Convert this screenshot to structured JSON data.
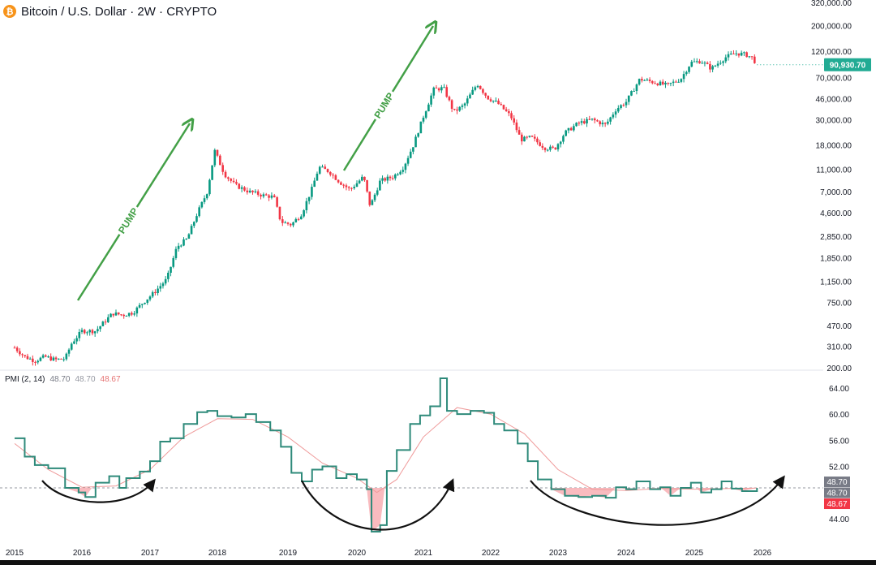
{
  "header": {
    "coin_icon": "bitcoin-icon",
    "coin_glyph": "₿",
    "title": "Bitcoin / U.S. Dollar · 2W · CRYPTO"
  },
  "price_badge": "90,930.70",
  "pmi_legend": {
    "name": "PMI (2, 14)",
    "v1": "48.70",
    "v2": "48.70",
    "v3": "48.67"
  },
  "pmi_badges": [
    "48.70",
    "48.70",
    "48.67"
  ],
  "annotations": [
    "PUMP",
    "PUMP"
  ],
  "colors": {
    "up": "#089981",
    "down": "#f23645",
    "pmi_line": "#2e8a7a",
    "pmi_gray": "#808080",
    "signal": "#ef9a9a",
    "fill": "#f8b4b8",
    "arrow": "#43a047",
    "badge_green": "#22ab94",
    "badge_red": "#f23645"
  },
  "chart_data": [
    {
      "type": "candlestick",
      "title": "Bitcoin / U.S. Dollar · 2W · CRYPTO",
      "scale": "log",
      "ylim": [
        200,
        320000
      ],
      "y_ticks": [
        "320,000.00",
        "200,000.00",
        "120,000.00",
        "70,000.00",
        "46,000.00",
        "30,000.00",
        "18,000.00",
        "11,000.00",
        "7,000.00",
        "4,600.00",
        "2,850.00",
        "1,850.00",
        "1,150.00",
        "750.00",
        "470.00",
        "310.00",
        "200.00"
      ],
      "x_ticks": [
        "2015",
        "2016",
        "2017",
        "2018",
        "2019",
        "2020",
        "2021",
        "2022",
        "2023",
        "2024",
        "2025",
        "2026"
      ],
      "xlim": [
        2015.0,
        2026.4
      ],
      "last_price": 90930.7,
      "series": [
        {
          "t": 2015.0,
          "p": 300
        },
        {
          "t": 2015.15,
          "p": 250
        },
        {
          "t": 2015.3,
          "p": 230
        },
        {
          "t": 2015.45,
          "p": 250
        },
        {
          "t": 2015.6,
          "p": 235
        },
        {
          "t": 2015.75,
          "p": 240
        },
        {
          "t": 2015.85,
          "p": 330
        },
        {
          "t": 2016.0,
          "p": 420
        },
        {
          "t": 2016.2,
          "p": 420
        },
        {
          "t": 2016.45,
          "p": 600
        },
        {
          "t": 2016.6,
          "p": 580
        },
        {
          "t": 2016.75,
          "p": 610
        },
        {
          "t": 2016.9,
          "p": 750
        },
        {
          "t": 2017.05,
          "p": 900
        },
        {
          "t": 2017.25,
          "p": 1200
        },
        {
          "t": 2017.4,
          "p": 2300
        },
        {
          "t": 2017.55,
          "p": 2700
        },
        {
          "t": 2017.7,
          "p": 4500
        },
        {
          "t": 2017.85,
          "p": 7000
        },
        {
          "t": 2017.96,
          "p": 16000
        },
        {
          "t": 2018.1,
          "p": 10000
        },
        {
          "t": 2018.25,
          "p": 8000
        },
        {
          "t": 2018.45,
          "p": 7000
        },
        {
          "t": 2018.65,
          "p": 6500
        },
        {
          "t": 2018.8,
          "p": 6300
        },
        {
          "t": 2018.9,
          "p": 3800
        },
        {
          "t": 2019.05,
          "p": 3600
        },
        {
          "t": 2019.2,
          "p": 4500
        },
        {
          "t": 2019.35,
          "p": 7500
        },
        {
          "t": 2019.45,
          "p": 11500
        },
        {
          "t": 2019.6,
          "p": 10500
        },
        {
          "t": 2019.75,
          "p": 8500
        },
        {
          "t": 2019.9,
          "p": 7300
        },
        {
          "t": 2020.1,
          "p": 9500
        },
        {
          "t": 2020.2,
          "p": 5200
        },
        {
          "t": 2020.35,
          "p": 8700
        },
        {
          "t": 2020.55,
          "p": 9500
        },
        {
          "t": 2020.7,
          "p": 11500
        },
        {
          "t": 2020.85,
          "p": 18000
        },
        {
          "t": 2021.0,
          "p": 32000
        },
        {
          "t": 2021.15,
          "p": 55000
        },
        {
          "t": 2021.3,
          "p": 57000
        },
        {
          "t": 2021.45,
          "p": 35000
        },
        {
          "t": 2021.6,
          "p": 40000
        },
        {
          "t": 2021.8,
          "p": 62000
        },
        {
          "t": 2021.95,
          "p": 47000
        },
        {
          "t": 2022.1,
          "p": 42000
        },
        {
          "t": 2022.3,
          "p": 32000
        },
        {
          "t": 2022.45,
          "p": 20000
        },
        {
          "t": 2022.6,
          "p": 21000
        },
        {
          "t": 2022.8,
          "p": 17000
        },
        {
          "t": 2022.95,
          "p": 16600
        },
        {
          "t": 2023.1,
          "p": 23000
        },
        {
          "t": 2023.3,
          "p": 28000
        },
        {
          "t": 2023.5,
          "p": 30000
        },
        {
          "t": 2023.7,
          "p": 27000
        },
        {
          "t": 2023.85,
          "p": 37000
        },
        {
          "t": 2024.0,
          "p": 43000
        },
        {
          "t": 2024.2,
          "p": 68000
        },
        {
          "t": 2024.4,
          "p": 64000
        },
        {
          "t": 2024.6,
          "p": 60000
        },
        {
          "t": 2024.8,
          "p": 68000
        },
        {
          "t": 2024.95,
          "p": 95000
        },
        {
          "t": 2025.1,
          "p": 98000
        },
        {
          "t": 2025.25,
          "p": 84000
        },
        {
          "t": 2025.45,
          "p": 105000
        },
        {
          "t": 2025.6,
          "p": 115000
        },
        {
          "t": 2025.75,
          "p": 112000
        },
        {
          "t": 2025.85,
          "p": 105000
        },
        {
          "t": 2025.92,
          "p": 90930
        }
      ]
    },
    {
      "type": "line",
      "title": "PMI (2, 14)",
      "ylim": [
        41,
        66
      ],
      "y_ticks": [
        "64.00",
        "60.00",
        "56.00",
        "52.00",
        "44.00"
      ],
      "reference_line": 48.7,
      "series": [
        {
          "name": "PMI",
          "values": [
            {
              "t": 2015.0,
              "v": 56.3
            },
            {
              "t": 2015.15,
              "v": 53.5
            },
            {
              "t": 2015.3,
              "v": 52.2
            },
            {
              "t": 2015.5,
              "v": 51.7
            },
            {
              "t": 2015.75,
              "v": 48.7
            },
            {
              "t": 2015.95,
              "v": 48.0
            },
            {
              "t": 2016.05,
              "v": 47.3
            },
            {
              "t": 2016.2,
              "v": 49.5
            },
            {
              "t": 2016.4,
              "v": 50.5
            },
            {
              "t": 2016.55,
              "v": 48.7
            },
            {
              "t": 2016.65,
              "v": 50.2
            },
            {
              "t": 2016.85,
              "v": 51.2
            },
            {
              "t": 2017.0,
              "v": 52.8
            },
            {
              "t": 2017.15,
              "v": 55.8
            },
            {
              "t": 2017.3,
              "v": 56.3
            },
            {
              "t": 2017.5,
              "v": 58.5
            },
            {
              "t": 2017.7,
              "v": 60.3
            },
            {
              "t": 2017.85,
              "v": 60.5
            },
            {
              "t": 2018.0,
              "v": 59.7
            },
            {
              "t": 2018.2,
              "v": 59.5
            },
            {
              "t": 2018.4,
              "v": 60.0
            },
            {
              "t": 2018.55,
              "v": 58.8
            },
            {
              "t": 2018.75,
              "v": 57.5
            },
            {
              "t": 2018.9,
              "v": 55.0
            },
            {
              "t": 2019.05,
              "v": 51.0
            },
            {
              "t": 2019.2,
              "v": 49.7
            },
            {
              "t": 2019.35,
              "v": 51.5
            },
            {
              "t": 2019.5,
              "v": 52.0
            },
            {
              "t": 2019.7,
              "v": 50.2
            },
            {
              "t": 2019.85,
              "v": 50.8
            },
            {
              "t": 2020.0,
              "v": 50.0
            },
            {
              "t": 2020.15,
              "v": 48.5
            },
            {
              "t": 2020.22,
              "v": 42.0
            },
            {
              "t": 2020.35,
              "v": 43.0
            },
            {
              "t": 2020.45,
              "v": 51.3
            },
            {
              "t": 2020.6,
              "v": 54.5
            },
            {
              "t": 2020.8,
              "v": 58.5
            },
            {
              "t": 2020.95,
              "v": 59.8
            },
            {
              "t": 2021.1,
              "v": 61.2
            },
            {
              "t": 2021.25,
              "v": 65.5
            },
            {
              "t": 2021.35,
              "v": 60.5
            },
            {
              "t": 2021.5,
              "v": 60.0
            },
            {
              "t": 2021.7,
              "v": 60.5
            },
            {
              "t": 2021.9,
              "v": 60.2
            },
            {
              "t": 2022.05,
              "v": 58.5
            },
            {
              "t": 2022.2,
              "v": 57.5
            },
            {
              "t": 2022.4,
              "v": 55.5
            },
            {
              "t": 2022.55,
              "v": 52.8
            },
            {
              "t": 2022.7,
              "v": 50.0
            },
            {
              "t": 2022.9,
              "v": 48.5
            },
            {
              "t": 2023.1,
              "v": 47.5
            },
            {
              "t": 2023.3,
              "v": 47.3
            },
            {
              "t": 2023.5,
              "v": 47.5
            },
            {
              "t": 2023.7,
              "v": 47.2
            },
            {
              "t": 2023.85,
              "v": 48.8
            },
            {
              "t": 2024.0,
              "v": 48.5
            },
            {
              "t": 2024.15,
              "v": 49.7
            },
            {
              "t": 2024.35,
              "v": 48.5
            },
            {
              "t": 2024.5,
              "v": 48.8
            },
            {
              "t": 2024.65,
              "v": 47.5
            },
            {
              "t": 2024.8,
              "v": 48.7
            },
            {
              "t": 2024.95,
              "v": 49.5
            },
            {
              "t": 2025.1,
              "v": 48.0
            },
            {
              "t": 2025.25,
              "v": 48.5
            },
            {
              "t": 2025.4,
              "v": 49.7
            },
            {
              "t": 2025.55,
              "v": 48.6
            },
            {
              "t": 2025.7,
              "v": 48.2
            },
            {
              "t": 2025.92,
              "v": 48.7
            }
          ]
        },
        {
          "name": "Signal",
          "values": [
            {
              "t": 2015.0,
              "v": 55.5
            },
            {
              "t": 2015.5,
              "v": 51.5
            },
            {
              "t": 2016.0,
              "v": 48.8
            },
            {
              "t": 2016.5,
              "v": 49.0
            },
            {
              "t": 2017.0,
              "v": 51.5
            },
            {
              "t": 2017.5,
              "v": 56.5
            },
            {
              "t": 2018.0,
              "v": 59.3
            },
            {
              "t": 2018.5,
              "v": 59.2
            },
            {
              "t": 2019.0,
              "v": 56.5
            },
            {
              "t": 2019.5,
              "v": 52.5
            },
            {
              "t": 2020.0,
              "v": 50.2
            },
            {
              "t": 2020.3,
              "v": 48.0
            },
            {
              "t": 2020.6,
              "v": 50.0
            },
            {
              "t": 2021.0,
              "v": 56.5
            },
            {
              "t": 2021.5,
              "v": 61.0
            },
            {
              "t": 2022.0,
              "v": 60.0
            },
            {
              "t": 2022.5,
              "v": 57.0
            },
            {
              "t": 2023.0,
              "v": 51.5
            },
            {
              "t": 2023.5,
              "v": 48.5
            },
            {
              "t": 2024.0,
              "v": 48.3
            },
            {
              "t": 2024.5,
              "v": 48.6
            },
            {
              "t": 2025.0,
              "v": 48.5
            },
            {
              "t": 2025.5,
              "v": 48.6
            },
            {
              "t": 2025.92,
              "v": 48.67
            }
          ]
        }
      ]
    }
  ]
}
